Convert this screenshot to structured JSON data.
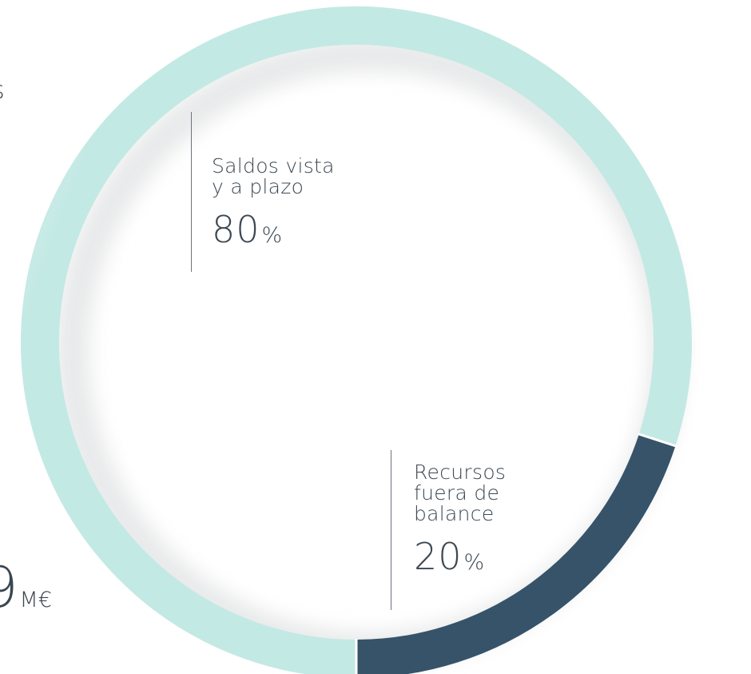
{
  "partial_texts": {
    "top": "s",
    "bottom_value": "9",
    "bottom_unit": "M€"
  },
  "colors": {
    "light_segment": "#c3e9e4",
    "dark_segment": "#36536a",
    "text": "#3d4852"
  },
  "chart_data": {
    "type": "pie",
    "style": "donut",
    "slices": [
      {
        "label": "Saldos vista\ny a plazo",
        "value": 80,
        "value_suffix": "%",
        "color": "#c3e9e4"
      },
      {
        "label": "Recursos\nfuera de\nbalance",
        "value": 20,
        "value_suffix": "%",
        "color": "#36536a"
      }
    ]
  }
}
